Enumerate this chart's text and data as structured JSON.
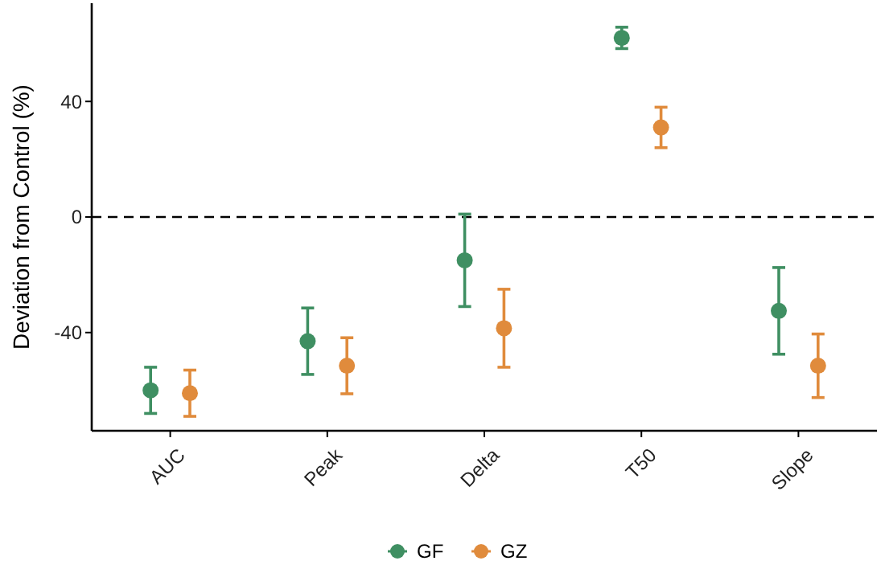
{
  "chart_data": {
    "type": "scatter",
    "ylabel": "Deviation from Control (%)",
    "categories": [
      "AUC",
      "Peak",
      "Delta",
      "T50",
      "Slope"
    ],
    "series": [
      {
        "name": "GF",
        "color": "#3f8f62",
        "values": [
          -60,
          -43,
          -15,
          62,
          -32.5
        ],
        "errors": [
          8,
          11.5,
          16,
          3.7,
          15
        ]
      },
      {
        "name": "GZ",
        "color": "#e08b3c",
        "values": [
          -61,
          -51.5,
          -38.5,
          31,
          -51.5
        ],
        "errors": [
          8,
          9.7,
          13.5,
          7,
          11
        ]
      }
    ],
    "ylim": [
      -74,
      74
    ],
    "yticks": [
      -40,
      0,
      40
    ],
    "ref_lines": [
      {
        "axis": "y",
        "value": 0,
        "line_style": "dashed",
        "color": "#000000"
      }
    ],
    "marker": "circle",
    "legend": "bottom",
    "grid": false
  }
}
